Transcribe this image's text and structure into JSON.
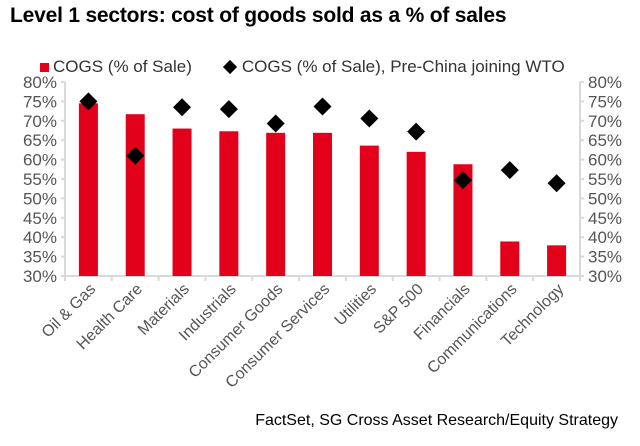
{
  "chart_data": {
    "type": "bar",
    "title": "Level 1 sectors: cost of goods sold as a % of sales",
    "categories": [
      "Oil & Gas",
      "Health Care",
      "Materials",
      "Industrials",
      "Consumer Goods",
      "Consumer Services",
      "Utilities",
      "S&P 500",
      "Financials",
      "Communications",
      "Technology"
    ],
    "series": [
      {
        "name": "COGS (% of Sale)",
        "type": "bar",
        "color": "#e2001a",
        "values": [
          74.5,
          71.7,
          68.0,
          67.3,
          66.9,
          66.9,
          63.6,
          62.0,
          58.8,
          38.9,
          37.9
        ]
      },
      {
        "name": "COGS (% of Sale), Pre-China joining WTO",
        "type": "scatter",
        "marker": "diamond",
        "color": "#000000",
        "values": [
          75.0,
          61.0,
          73.5,
          73.0,
          69.3,
          73.7,
          70.6,
          67.2,
          54.7,
          57.3,
          53.9
        ]
      }
    ],
    "ylim": [
      30,
      80
    ],
    "yticks": [
      "30%",
      "35%",
      "40%",
      "45%",
      "50%",
      "55%",
      "60%",
      "65%",
      "70%",
      "75%",
      "80%"
    ],
    "ytick_values": [
      30,
      35,
      40,
      45,
      50,
      55,
      60,
      65,
      70,
      75,
      80
    ],
    "secondary_yaxis": true,
    "xlabel": "",
    "ylabel": "",
    "grid": false,
    "legend": "top",
    "source": "FactSet, SG Cross Asset Research/Equity Strategy"
  }
}
